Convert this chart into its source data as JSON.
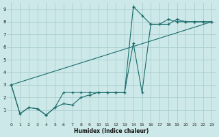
{
  "xlabel": "Humidex (Indice chaleur)",
  "bg_color": "#cce8e8",
  "grid_color": "#aacece",
  "line_color": "#1a6b6b",
  "xlim": [
    -0.5,
    23.5
  ],
  "ylim": [
    0,
    9.5
  ],
  "xtick_vals": [
    0,
    1,
    2,
    3,
    4,
    5,
    6,
    7,
    8,
    9,
    10,
    11,
    12,
    13,
    14,
    15,
    16,
    17,
    18,
    19,
    20,
    21,
    22,
    23
  ],
  "ytick_vals": [
    1,
    2,
    3,
    4,
    5,
    6,
    7,
    8,
    9
  ],
  "line1_x": [
    0,
    1,
    2,
    3,
    4,
    5,
    6,
    7,
    8,
    9,
    10,
    11,
    12,
    13,
    14,
    14,
    15,
    16,
    17,
    18,
    19,
    20,
    21,
    22,
    23
  ],
  "line1_y": [
    3,
    0.7,
    1.2,
    1.1,
    0.6,
    1.2,
    2.4,
    2.4,
    2.4,
    2.4,
    2.4,
    2.4,
    2.4,
    2.4,
    9.2,
    9.2,
    8.5,
    7.8,
    7.8,
    8.2,
    8.0,
    8.0,
    8.0,
    8.0,
    8.0
  ],
  "line2_x": [
    0,
    1,
    2,
    3,
    4,
    5,
    6,
    7,
    8,
    9,
    10,
    11,
    12,
    13,
    14,
    15,
    16,
    17,
    18,
    19,
    20,
    21,
    22,
    23
  ],
  "line2_y": [
    3,
    0.7,
    1.2,
    1.1,
    0.6,
    1.2,
    1.5,
    1.4,
    2.0,
    2.2,
    2.4,
    2.4,
    2.4,
    2.4,
    6.3,
    2.4,
    7.8,
    7.8,
    7.8,
    8.2,
    8.0,
    8.0,
    8.0,
    8.0
  ],
  "line3_x": [
    0,
    23
  ],
  "line3_y": [
    3,
    8.0
  ]
}
